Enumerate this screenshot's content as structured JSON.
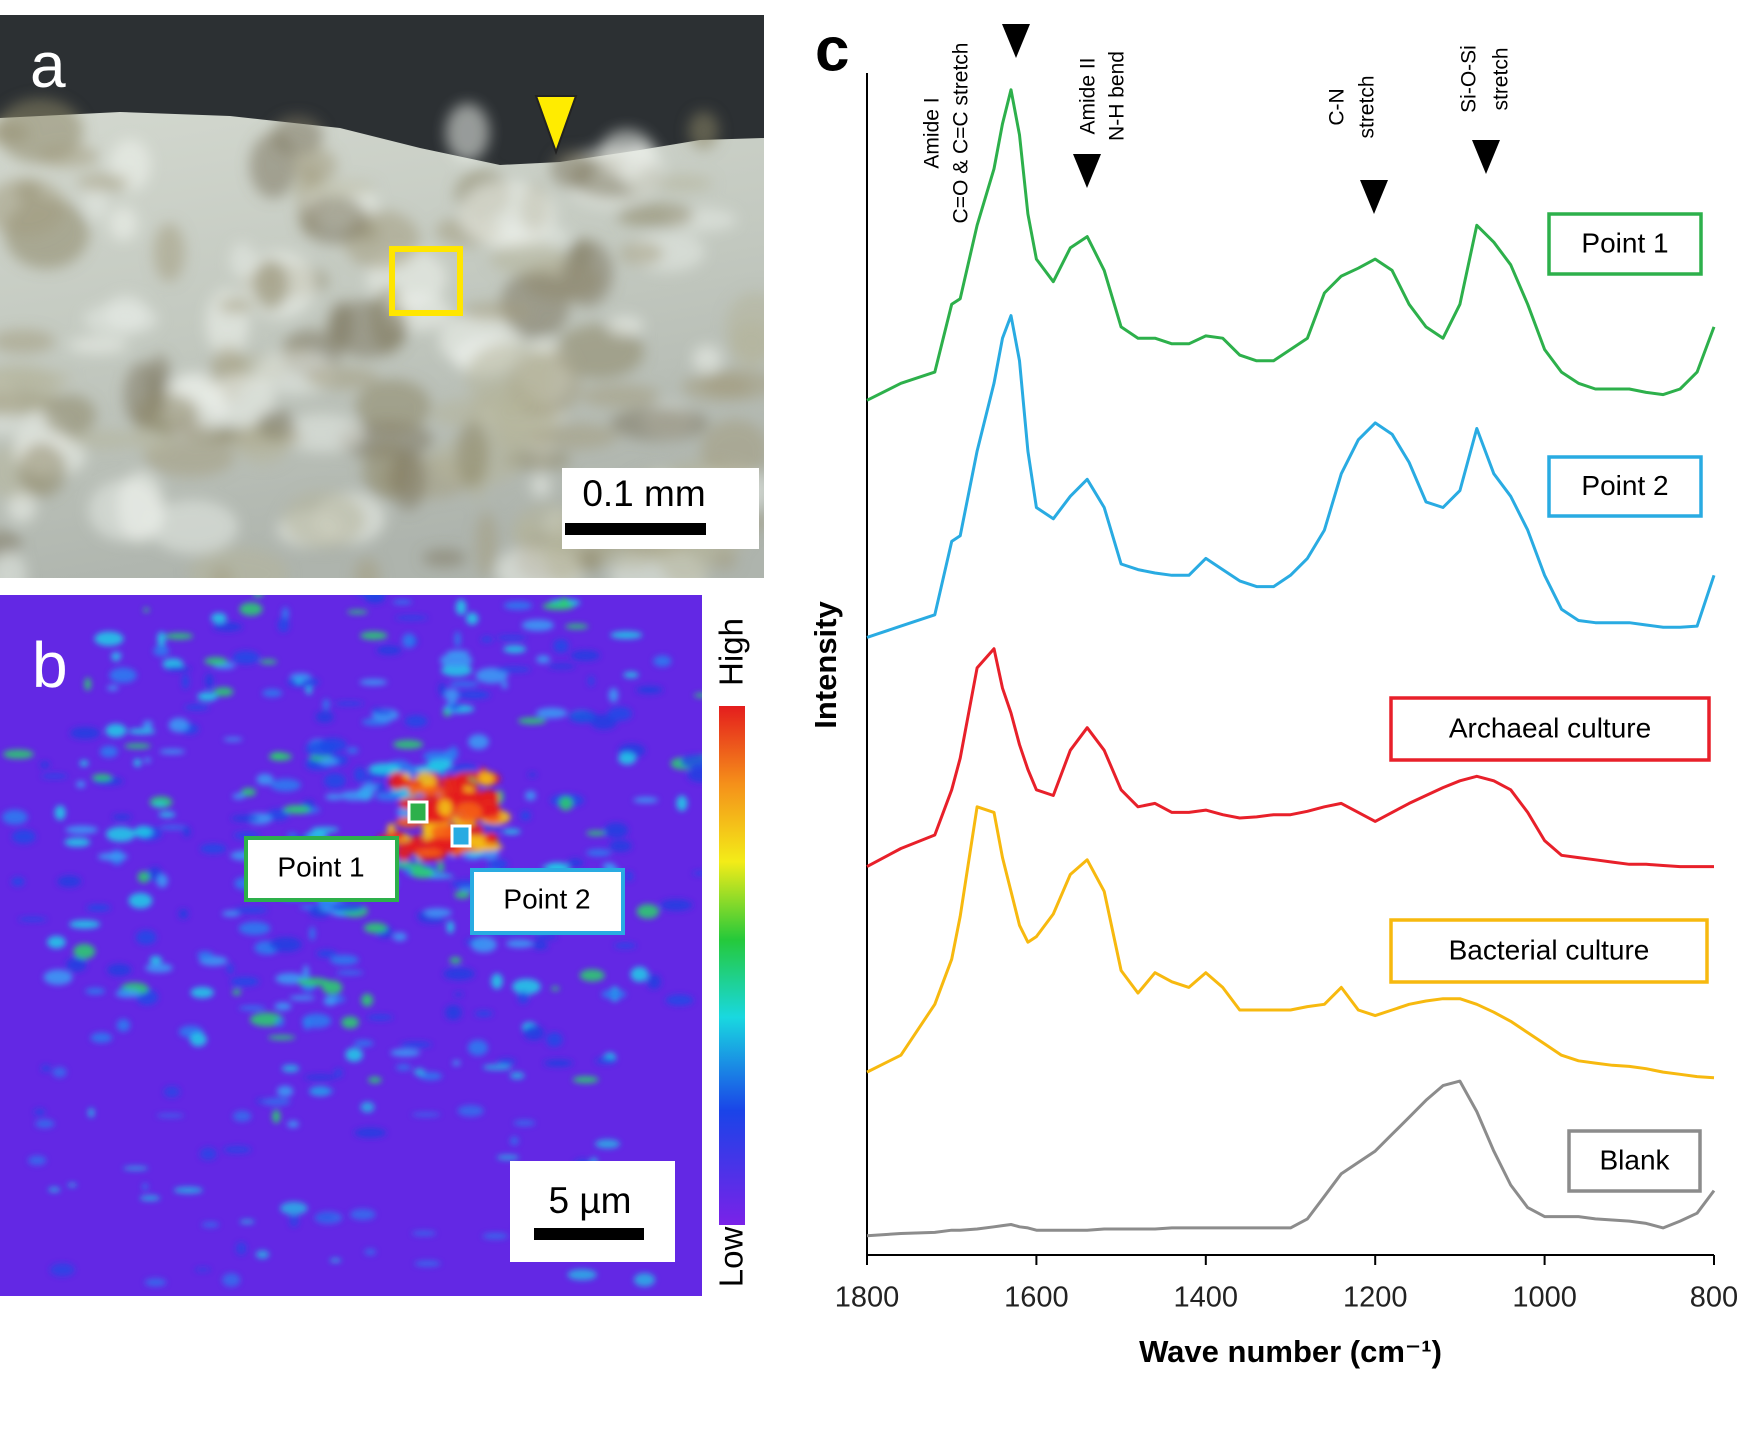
{
  "panels": {
    "a": {
      "label": "a",
      "scale_bar": "0.1 mm"
    },
    "b": {
      "label": "b",
      "points": [
        "Point 1",
        "Point 2"
      ],
      "colorbar": {
        "high": "High",
        "low": "Low"
      },
      "scale_bar": "5 µm"
    }
  },
  "chart_data": {
    "type": "line",
    "panel_label": "c",
    "x_label": "Wave number (cm⁻¹)",
    "y_label": "Intensity",
    "annotations": [
      [
        "Amide I",
        "C=O & C=C stretch"
      ],
      [
        "Amide II",
        "N-H bend"
      ],
      [
        "C-N",
        "stretch"
      ],
      [
        "Si-O-Si",
        "stretch"
      ]
    ],
    "x": [
      1800,
      1760,
      1720,
      1700,
      1690,
      1670,
      1650,
      1640,
      1630,
      1620,
      1610,
      1600,
      1580,
      1560,
      1540,
      1520,
      1500,
      1480,
      1460,
      1440,
      1420,
      1400,
      1380,
      1360,
      1340,
      1320,
      1300,
      1280,
      1260,
      1240,
      1220,
      1200,
      1180,
      1160,
      1140,
      1120,
      1100,
      1080,
      1060,
      1040,
      1020,
      1000,
      980,
      960,
      940,
      920,
      900,
      880,
      860,
      840,
      820,
      800
    ],
    "xlim": [
      1800,
      800
    ],
    "xticks": [
      1800,
      1600,
      1400,
      1200,
      1000,
      800
    ],
    "ylim": [
      0,
      1100
    ],
    "series": [
      {
        "name": "Point 1",
        "color": "#2db04b",
        "values": [
          757,
          772,
          782,
          842,
          847,
          912,
          962,
          1002,
          1032,
          992,
          922,
          882,
          862,
          892,
          902,
          872,
          822,
          812,
          812,
          807,
          807,
          814,
          812,
          797,
          792,
          792,
          802,
          812,
          852,
          867,
          874,
          882,
          872,
          842,
          822,
          812,
          842,
          912,
          897,
          877,
          842,
          802,
          782,
          772,
          767,
          767,
          767,
          764,
          762,
          767,
          782,
          822
        ]
      },
      {
        "name": "Point 2",
        "color": "#29abe2",
        "values": [
          547,
          557,
          567,
          632,
          637,
          712,
          772,
          812,
          832,
          792,
          712,
          662,
          652,
          672,
          687,
          662,
          612,
          607,
          604,
          602,
          602,
          617,
          607,
          597,
          592,
          592,
          602,
          617,
          642,
          692,
          722,
          737,
          727,
          702,
          667,
          662,
          677,
          732,
          692,
          672,
          642,
          602,
          572,
          562,
          560,
          560,
          560,
          558,
          556,
          556,
          557,
          602
        ]
      },
      {
        "name": "Archaeal culture",
        "color": "#e8202a",
        "values": [
          344,
          360,
          372,
          412,
          440,
          520,
          537,
          502,
          480,
          452,
          430,
          412,
          407,
          447,
          467,
          447,
          412,
          397,
          400,
          392,
          392,
          394,
          390,
          387,
          388,
          390,
          390,
          393,
          397,
          400,
          392,
          384,
          392,
          400,
          407,
          414,
          420,
          424,
          420,
          412,
          392,
          367,
          354,
          352,
          350,
          348,
          346,
          346,
          345,
          344,
          344,
          344
        ]
      },
      {
        "name": "Bacterial culture",
        "color": "#f7b90f",
        "values": [
          162,
          177,
          222,
          262,
          300,
          397,
          392,
          352,
          322,
          292,
          277,
          282,
          302,
          337,
          350,
          322,
          252,
          232,
          250,
          242,
          237,
          250,
          237,
          217,
          217,
          217,
          217,
          220,
          222,
          237,
          217,
          212,
          217,
          222,
          225,
          227,
          227,
          222,
          215,
          207,
          197,
          187,
          177,
          172,
          170,
          168,
          167,
          165,
          162,
          160,
          158,
          157
        ]
      },
      {
        "name": "Blank",
        "color": "#8c8c8c",
        "values": [
          17,
          19,
          20,
          22,
          22,
          23,
          25,
          26,
          27,
          25,
          24,
          22,
          22,
          22,
          22,
          23,
          23,
          23,
          23,
          24,
          24,
          24,
          24,
          24,
          24,
          24,
          24,
          32,
          52,
          72,
          82,
          92,
          107,
          122,
          137,
          150,
          154,
          127,
          92,
          62,
          42,
          34,
          34,
          34,
          32,
          31,
          30,
          28,
          24,
          30,
          37,
          57
        ]
      }
    ]
  }
}
